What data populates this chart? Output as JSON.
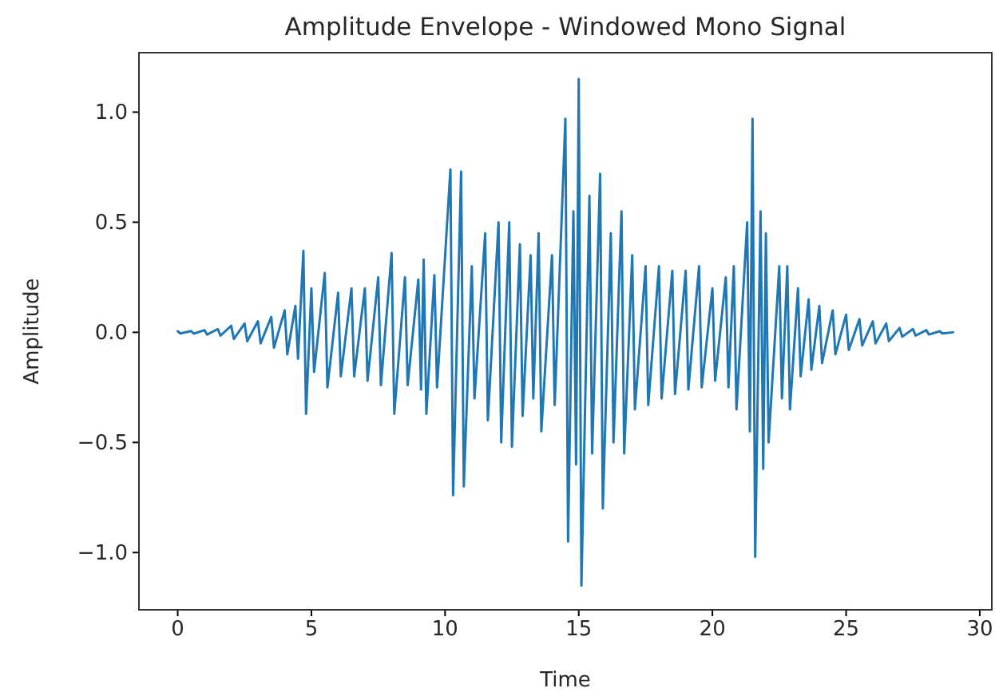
{
  "chart_data": {
    "type": "line",
    "title": "Amplitude Envelope - Windowed Mono Signal",
    "xlabel": "Time",
    "ylabel": "Amplitude",
    "xlim": [
      -1.45,
      30.45
    ],
    "xticks": [
      0,
      5,
      10,
      15,
      20,
      25,
      30
    ],
    "ylim": [
      -1.26,
      1.27
    ],
    "yticks": [
      {
        "value": -1,
        "label": "−1.0"
      },
      {
        "value": -0.5,
        "label": "−0.5"
      },
      {
        "value": 0,
        "label": "0.0"
      },
      {
        "value": 0.5,
        "label": "0.5"
      },
      {
        "value": 1,
        "label": "1.0"
      }
    ],
    "marker": "none",
    "line_style": "solid",
    "series": [
      {
        "color": "#1f77b4",
        "x": [
          0,
          0.1,
          0.5,
          0.6,
          1,
          1.1,
          1.5,
          1.6,
          2,
          2.1,
          2.5,
          2.6,
          3,
          3.1,
          3.5,
          3.6,
          4,
          4.1,
          4.4,
          4.5,
          4.7,
          4.8,
          5,
          5.1,
          5.5,
          5.6,
          6,
          6.1,
          6.5,
          6.6,
          7,
          7.1,
          7.5,
          7.6,
          8,
          8.1,
          8.5,
          8.6,
          9,
          9.1,
          9.2,
          9.3,
          9.6,
          9.7,
          10.2,
          10.3,
          10.6,
          10.7,
          11,
          11.1,
          11.5,
          11.6,
          12,
          12.1,
          12.4,
          12.5,
          12.8,
          12.9,
          13.2,
          13.3,
          13.5,
          13.6,
          14,
          14.1,
          14.5,
          14.6,
          14.8,
          14.9,
          15,
          15.1,
          15.4,
          15.5,
          15.8,
          15.9,
          16.2,
          16.3,
          16.6,
          16.7,
          17,
          17.1,
          17.5,
          17.6,
          18,
          18.1,
          18.5,
          18.6,
          19,
          19.1,
          19.5,
          19.6,
          20,
          20.1,
          20.5,
          20.6,
          20.8,
          20.9,
          21.3,
          21.4,
          21.5,
          21.6,
          21.8,
          21.9,
          22,
          22.1,
          22.5,
          22.6,
          22.8,
          22.9,
          23.2,
          23.3,
          23.6,
          23.7,
          24,
          24.1,
          24.5,
          24.6,
          25,
          25.1,
          25.5,
          25.6,
          26,
          26.1,
          26.5,
          26.6,
          27,
          27.1,
          27.5,
          27.6,
          28,
          28.1,
          28.5,
          28.6,
          29
        ],
        "values": [
          0.005,
          -0.005,
          0.006,
          -0.006,
          0.01,
          -0.01,
          0.015,
          -0.015,
          0.03,
          -0.03,
          0.04,
          -0.04,
          0.05,
          -0.05,
          0.07,
          -0.07,
          0.1,
          -0.1,
          0.12,
          -0.12,
          0.37,
          -0.37,
          0.2,
          -0.18,
          0.27,
          -0.25,
          0.18,
          -0.2,
          0.2,
          -0.2,
          0.2,
          -0.22,
          0.25,
          -0.24,
          0.36,
          -0.37,
          0.25,
          -0.24,
          0.24,
          -0.26,
          0.33,
          -0.37,
          0.26,
          -0.25,
          0.74,
          -0.74,
          0.73,
          -0.7,
          0.3,
          -0.3,
          0.45,
          -0.4,
          0.5,
          -0.5,
          0.5,
          -0.52,
          0.4,
          -0.38,
          0.35,
          -0.3,
          0.45,
          -0.45,
          0.35,
          -0.33,
          0.97,
          -0.95,
          0.55,
          -0.6,
          1.15,
          -1.15,
          0.62,
          -0.55,
          0.72,
          -0.8,
          0.45,
          -0.5,
          0.55,
          -0.55,
          0.35,
          -0.35,
          0.3,
          -0.33,
          0.3,
          -0.3,
          0.28,
          -0.28,
          0.28,
          -0.26,
          0.3,
          -0.25,
          0.2,
          -0.22,
          0.25,
          -0.25,
          0.3,
          -0.35,
          0.5,
          -0.45,
          0.97,
          -1.02,
          0.55,
          -0.62,
          0.45,
          -0.5,
          0.3,
          -0.3,
          0.3,
          -0.35,
          0.2,
          -0.2,
          0.15,
          -0.17,
          0.12,
          -0.14,
          0.1,
          -0.1,
          0.08,
          -0.08,
          0.06,
          -0.06,
          0.05,
          -0.05,
          0.04,
          -0.04,
          0.02,
          -0.02,
          0.015,
          -0.015,
          0.01,
          -0.01,
          0.005,
          -0.005,
          0
        ]
      }
    ]
  }
}
